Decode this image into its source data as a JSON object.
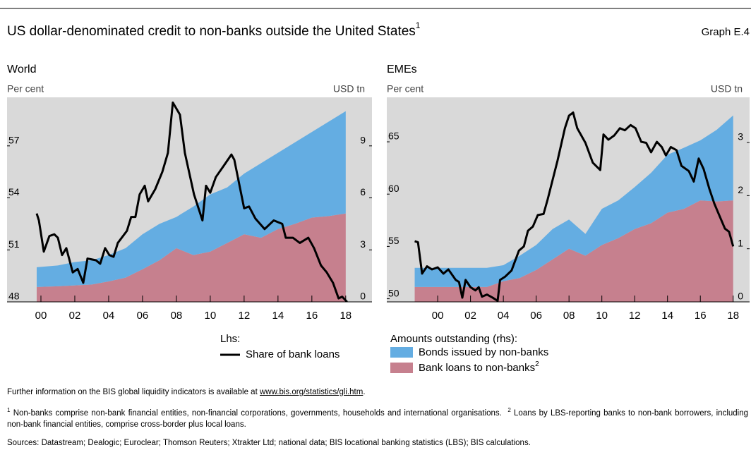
{
  "header": {
    "title": "US dollar-denominated credit to non-banks outside the United States",
    "title_note": "1",
    "graph_id": "Graph E.4"
  },
  "chart_data": [
    {
      "type": "combo",
      "title": "World",
      "ylabel": "Per cent",
      "y2label": "USD tn",
      "background": "#d9d9d9",
      "stacked": true,
      "xlim": [
        1998,
        2019.55
      ],
      "xticks": [
        {
          "value": 2000,
          "label": "00"
        },
        {
          "value": 2002,
          "label": "02"
        },
        {
          "value": 2004,
          "label": "04"
        },
        {
          "value": 2006,
          "label": "06"
        },
        {
          "value": 2008,
          "label": "08"
        },
        {
          "value": 2010,
          "label": "10"
        },
        {
          "value": 2012,
          "label": "12"
        },
        {
          "value": 2014,
          "label": "14"
        },
        {
          "value": 2016,
          "label": "16"
        },
        {
          "value": 2018,
          "label": "18"
        }
      ],
      "ylim": [
        48,
        59.8
      ],
      "yticks": [
        48,
        51,
        54,
        57
      ],
      "y2lim": [
        0,
        11.8
      ],
      "y2ticks": [
        0,
        3,
        6,
        9
      ],
      "x": [
        1999.75,
        2001,
        2002,
        2003,
        2004,
        2005,
        2006,
        2007,
        2008,
        2009,
        2010,
        2011,
        2012,
        2013,
        2014,
        2015,
        2016,
        2017,
        2018
      ],
      "series": [
        {
          "name": "Bank loans to non-banks",
          "name_note": "2",
          "type": "area",
          "axis": "y2",
          "color": "#c6808e",
          "values": [
            0.86,
            0.9,
            0.95,
            1.0,
            1.18,
            1.4,
            1.88,
            2.4,
            3.1,
            2.7,
            2.9,
            3.4,
            3.9,
            3.7,
            4.2,
            4.5,
            4.86,
            4.95,
            5.1
          ]
        },
        {
          "name": "Bonds issued by non-banks",
          "type": "area",
          "axis": "y2",
          "color": "#64ade2",
          "values": [
            1.14,
            1.2,
            1.35,
            1.4,
            1.52,
            1.7,
            2.02,
            2.1,
            1.8,
            2.8,
            3.3,
            3.2,
            3.5,
            4.3,
            4.4,
            4.7,
            4.94,
            5.45,
            5.9
          ]
        },
        {
          "name": "Share of bank loans",
          "type": "line",
          "color": "#000000",
          "x": [
            1999.75,
            1999.88,
            2000.17,
            2000.5,
            2000.79,
            2001.0,
            2001.25,
            2001.5,
            2001.88,
            2002.17,
            2002.5,
            2002.75,
            2003.25,
            2003.5,
            2003.79,
            2004.04,
            2004.29,
            2004.54,
            2005.08,
            2005.33,
            2005.58,
            2005.83,
            2006.13,
            2006.33,
            2006.75,
            2007.17,
            2007.5,
            2007.79,
            2008.21,
            2008.5,
            2009.04,
            2009.54,
            2009.75,
            2010.0,
            2010.33,
            2010.83,
            2011.25,
            2011.42,
            2012.0,
            2012.29,
            2012.67,
            2013.21,
            2013.75,
            2014.25,
            2014.46,
            2014.88,
            2015.29,
            2015.79,
            2016.13,
            2016.54,
            2016.88,
            2017.25,
            2017.58,
            2017.79,
            2018.08
          ],
          "values": [
            53.1,
            52.7,
            50.9,
            51.8,
            51.9,
            51.7,
            50.7,
            51.1,
            49.7,
            49.9,
            49.1,
            50.5,
            50.4,
            50.2,
            51.1,
            50.7,
            50.6,
            51.4,
            52.1,
            52.9,
            52.9,
            54.2,
            54.7,
            53.8,
            54.5,
            55.5,
            56.6,
            59.5,
            58.8,
            56.6,
            54.2,
            52.7,
            54.7,
            54.3,
            55.2,
            55.9,
            56.5,
            56.2,
            53.4,
            53.5,
            52.8,
            52.2,
            52.7,
            52.5,
            51.7,
            51.7,
            51.4,
            51.7,
            51.1,
            50.1,
            49.7,
            49.1,
            48.2,
            48.3,
            48.0
          ]
        }
      ]
    },
    {
      "type": "combo",
      "title": "EMEs",
      "ylabel": "Per cent",
      "y2label": "USD tn",
      "background": "#d9d9d9",
      "stacked": true,
      "xlim": [
        1996.9,
        2019.0
      ],
      "xticks": [
        {
          "value": 2000,
          "label": "00"
        },
        {
          "value": 2002,
          "label": "02"
        },
        {
          "value": 2004,
          "label": "04"
        },
        {
          "value": 2006,
          "label": "06"
        },
        {
          "value": 2008,
          "label": "08"
        },
        {
          "value": 2010,
          "label": "10"
        },
        {
          "value": 2012,
          "label": "12"
        },
        {
          "value": 2014,
          "label": "14"
        },
        {
          "value": 2016,
          "label": "16"
        },
        {
          "value": 2018,
          "label": "18"
        }
      ],
      "ylim": [
        49.7,
        69.25
      ],
      "yticks": [
        50,
        55,
        60,
        65
      ],
      "y2lim": [
        0,
        3.85
      ],
      "y2ticks": [
        0,
        1,
        2,
        3
      ],
      "x": [
        1998.6,
        1999,
        2000,
        2001,
        2002,
        2003,
        2004,
        2005,
        2006,
        2007,
        2008,
        2009,
        2010,
        2011,
        2012,
        2013,
        2014,
        2015,
        2016,
        2017,
        2018
      ],
      "series": [
        {
          "type": "area",
          "axis": "y2",
          "color": "#c6808e",
          "values": [
            0.28,
            0.28,
            0.28,
            0.28,
            0.28,
            0.28,
            0.39,
            0.45,
            0.6,
            0.8,
            1.0,
            0.87,
            1.07,
            1.2,
            1.37,
            1.48,
            1.68,
            1.75,
            1.91,
            1.89,
            1.91
          ]
        },
        {
          "type": "area",
          "axis": "y2",
          "color": "#64ade2",
          "values": [
            0.36,
            0.36,
            0.36,
            0.36,
            0.36,
            0.36,
            0.3,
            0.42,
            0.47,
            0.57,
            0.55,
            0.41,
            0.68,
            0.71,
            0.79,
            0.95,
            1.09,
            1.15,
            1.13,
            1.35,
            1.6
          ]
        },
        {
          "type": "line",
          "color": "#000000",
          "x": [
            1998.6,
            1998.8,
            1999.05,
            1999.35,
            1999.65,
            2000,
            2000.35,
            2000.65,
            2001.1,
            2001.3,
            2001.5,
            2001.7,
            2002,
            2002.3,
            2002.5,
            2002.7,
            2003,
            2003.35,
            2003.65,
            2003.8,
            2004.1,
            2004.5,
            2004.95,
            2005.25,
            2005.5,
            2005.8,
            2006.1,
            2006.45,
            2006.7,
            2007.3,
            2007.75,
            2008,
            2008.25,
            2008.5,
            2009,
            2009.45,
            2009.9,
            2010.1,
            2010.4,
            2010.75,
            2011.1,
            2011.4,
            2011.75,
            2012.05,
            2012.4,
            2012.7,
            2013,
            2013.35,
            2013.65,
            2013.9,
            2014.2,
            2014.55,
            2014.85,
            2015.3,
            2015.6,
            2015.9,
            2016.2,
            2016.55,
            2016.85,
            2017.2,
            2017.5,
            2017.75,
            2018
          ],
          "values": [
            55.5,
            55.4,
            52.4,
            53.1,
            52.8,
            53.0,
            52.4,
            52.8,
            51.8,
            51.6,
            50.1,
            51.8,
            51.1,
            50.8,
            51.1,
            50.2,
            50.4,
            50.1,
            49.8,
            51.8,
            52.1,
            52.7,
            54.6,
            55.0,
            56.5,
            56.9,
            58.0,
            58.1,
            59.5,
            63.2,
            66.3,
            67.5,
            67.8,
            66.3,
            64.9,
            63.0,
            62.3,
            65.7,
            65.2,
            65.6,
            66.3,
            66.1,
            66.6,
            66.3,
            65.0,
            64.9,
            64.0,
            65.0,
            64.5,
            63.7,
            64.5,
            64.2,
            62.7,
            62.2,
            61.2,
            63.4,
            62.4,
            60.5,
            59.1,
            57.8,
            56.7,
            56.4,
            55.0
          ]
        }
      ]
    }
  ],
  "legend": {
    "lhs_label": "Lhs:",
    "rhs_label": "Amounts outstanding (rhs):"
  },
  "footer": {
    "info_text": "Further information on the BIS global liquidity indicators is available at",
    "info_link": "www.bis.org/statistics/gli.htm",
    "info_end": ".",
    "note1_marker": "1",
    "note1": "Non-banks comprise non-bank financial entities, non-financial corporations, governments, households and international organisations.",
    "note2_marker": "2",
    "note2": "Loans by LBS-reporting banks to non-bank borrowers, including non-bank financial entities, comprise cross-border plus local loans.",
    "sources": "Sources: Datastream; Dealogic; Euroclear; Thomson Reuters; Xtrakter Ltd; national data; BIS locational banking statistics (LBS); BIS calculations."
  }
}
